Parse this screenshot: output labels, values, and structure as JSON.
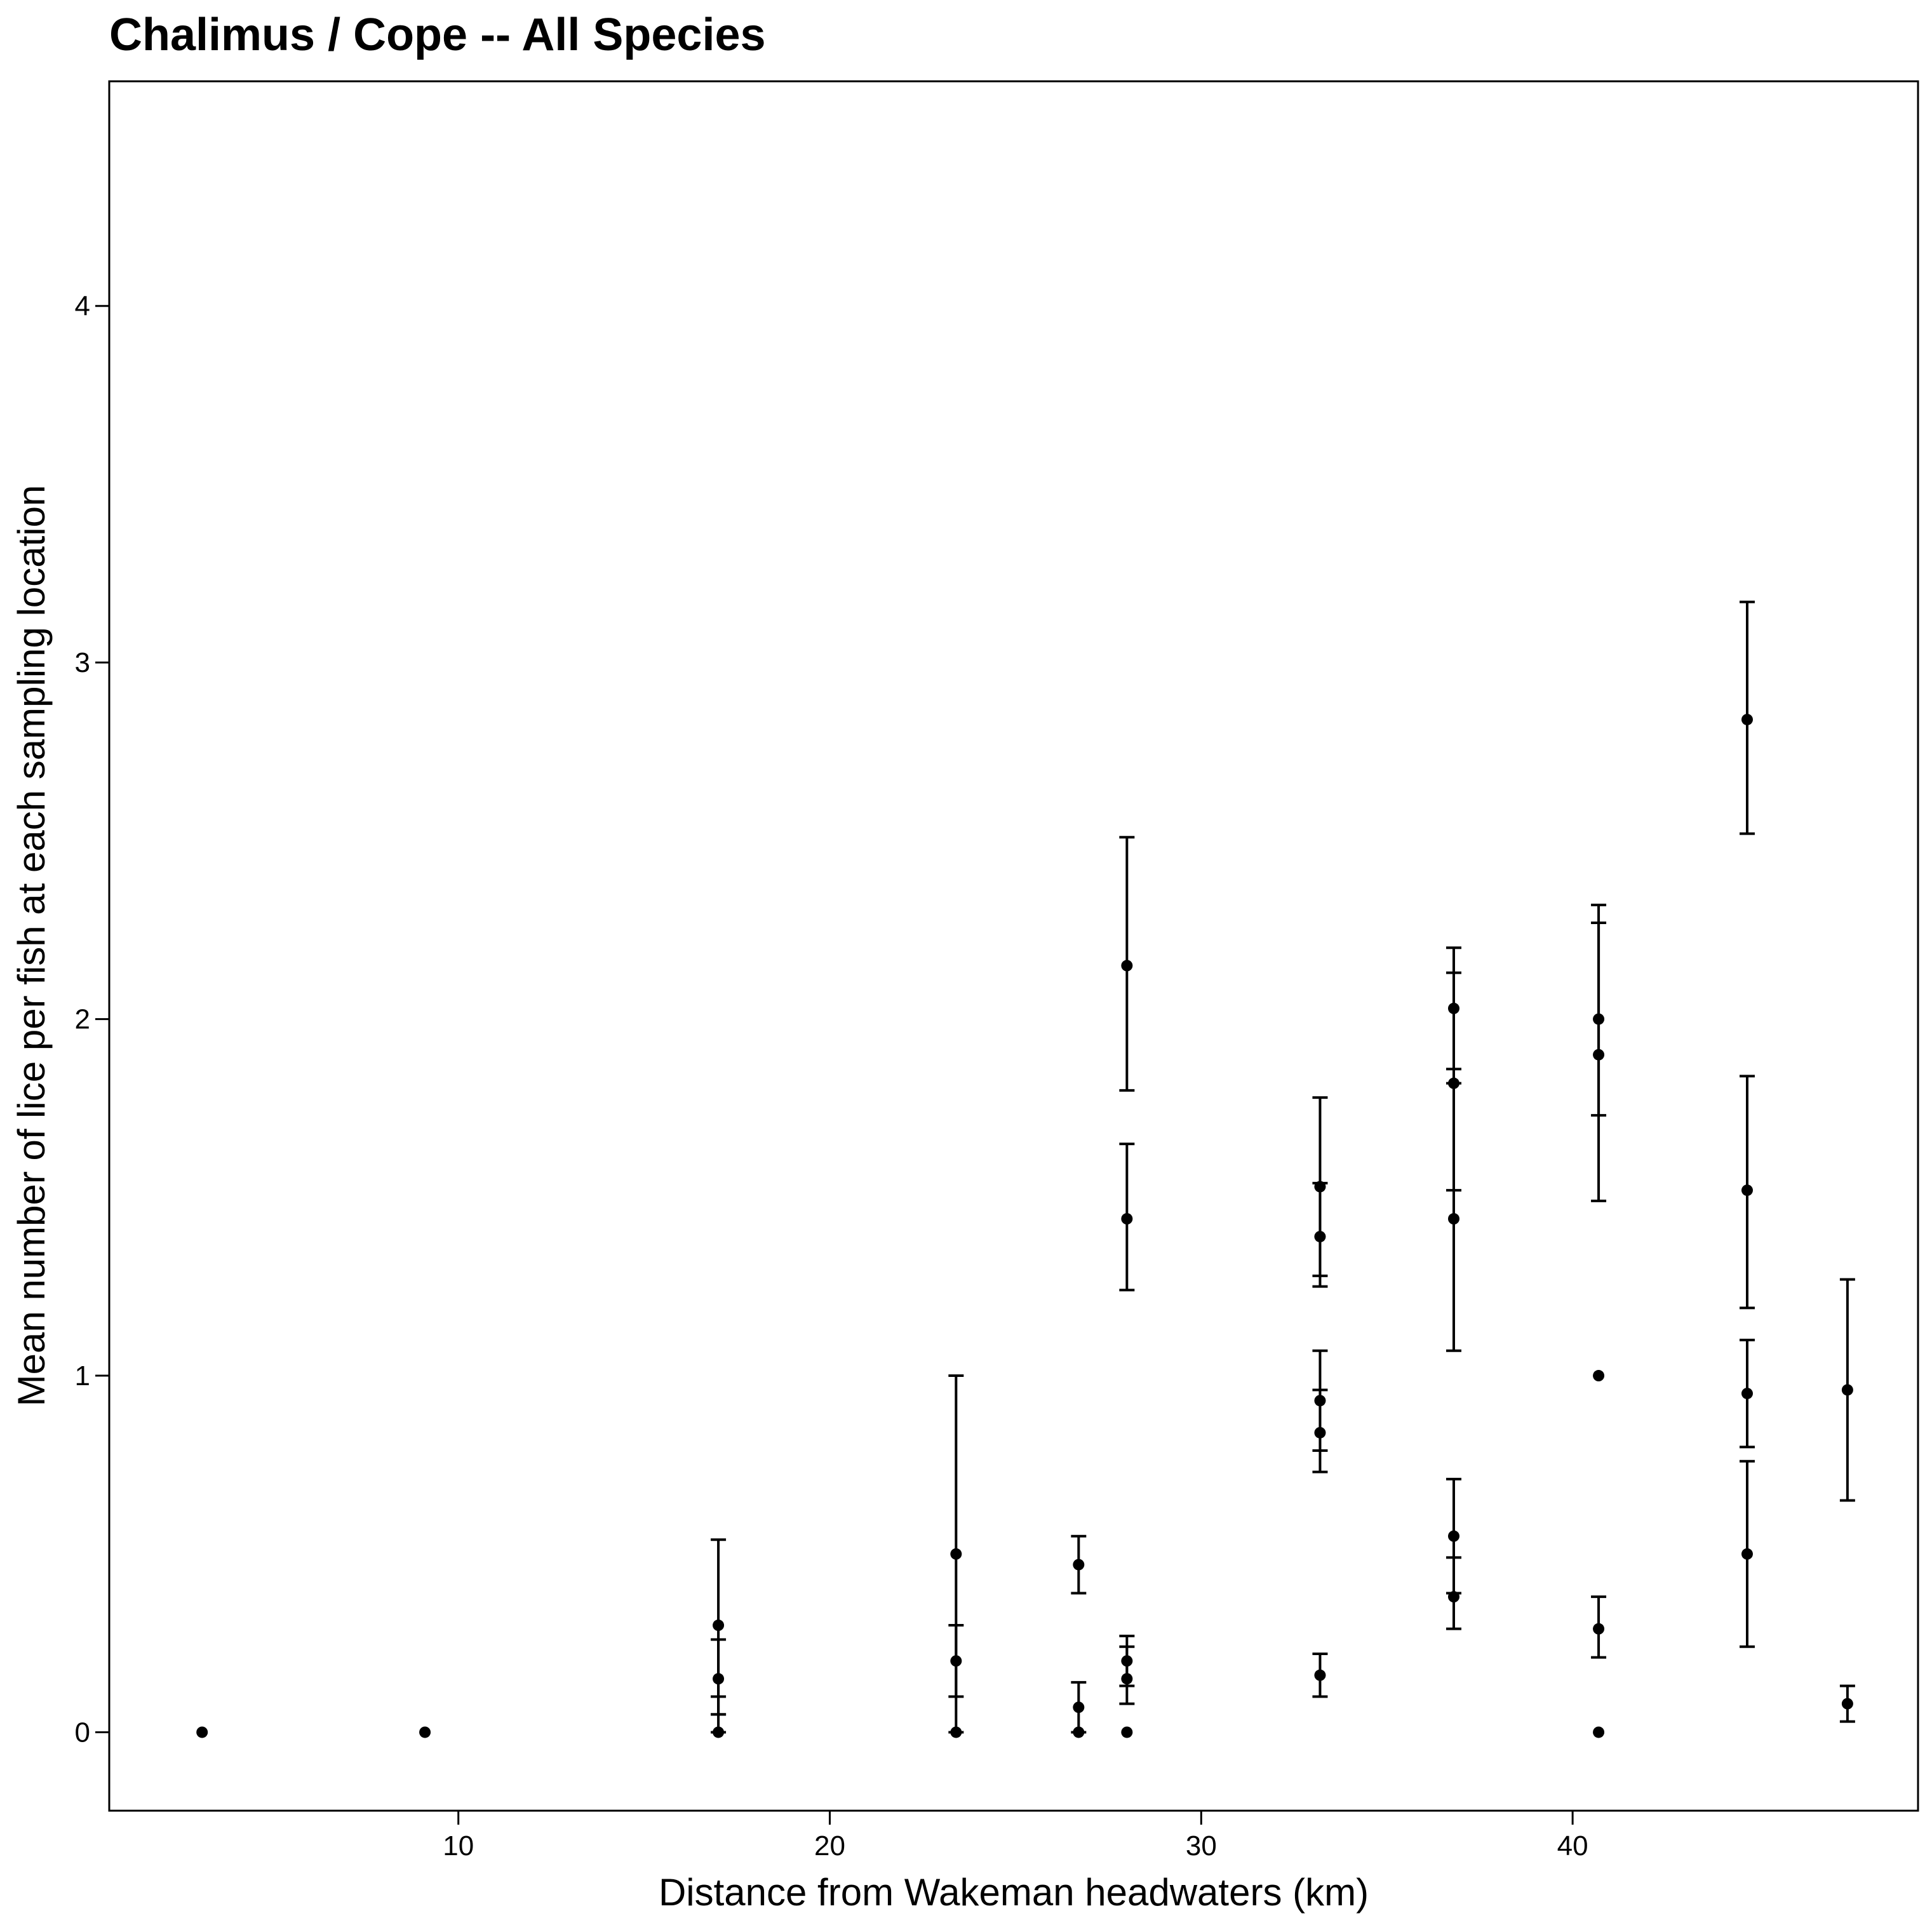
{
  "chart_data": {
    "type": "scatter",
    "title": "Chalimus / Cope -- All Species",
    "xlabel": "Distance from Wakeman headwaters (km)",
    "ylabel": "Mean number of lice per fish at each sampling location",
    "xlim": [
      0.6,
      49.3
    ],
    "ylim": [
      -0.22,
      4.63
    ],
    "x_ticks": [
      10,
      20,
      30,
      40
    ],
    "y_ticks": [
      0,
      1,
      2,
      3,
      4
    ],
    "grid": false,
    "legend": "none",
    "marker_color": "#000000",
    "points": [
      {
        "x": 3.1,
        "y": 0
      },
      {
        "x": 9.1,
        "y": 0
      },
      {
        "x": 17.0,
        "y": 0.3,
        "lo": 0.05,
        "hi": 0.54
      },
      {
        "x": 17.0,
        "y": 0.15,
        "lo": 0.05,
        "hi": 0.26
      },
      {
        "x": 17.0,
        "y": 0,
        "lo": 0,
        "hi": 0.1
      },
      {
        "x": 23.4,
        "y": 0.5,
        "lo": 0,
        "hi": 1.0
      },
      {
        "x": 23.4,
        "y": 0.2,
        "lo": 0.1,
        "hi": 0.3
      },
      {
        "x": 23.4,
        "y": 0
      },
      {
        "x": 26.7,
        "y": 0.47,
        "lo": 0.39,
        "hi": 0.55
      },
      {
        "x": 26.7,
        "y": 0.07,
        "lo": 0,
        "hi": 0.14
      },
      {
        "x": 26.7,
        "y": 0
      },
      {
        "x": 28.0,
        "y": 2.15,
        "lo": 1.8,
        "hi": 2.51
      },
      {
        "x": 28.0,
        "y": 1.44,
        "lo": 1.24,
        "hi": 1.65
      },
      {
        "x": 28.0,
        "y": 0.2,
        "lo": 0.13,
        "hi": 0.27
      },
      {
        "x": 28.0,
        "y": 0.15,
        "lo": 0.08,
        "hi": 0.24
      },
      {
        "x": 28.0,
        "y": 0
      },
      {
        "x": 33.2,
        "y": 1.53,
        "lo": 1.28,
        "hi": 1.78
      },
      {
        "x": 33.2,
        "y": 1.39,
        "lo": 1.25,
        "hi": 1.54
      },
      {
        "x": 33.2,
        "y": 0.93,
        "lo": 0.79,
        "hi": 1.07
      },
      {
        "x": 33.2,
        "y": 0.84,
        "lo": 0.73,
        "hi": 0.96
      },
      {
        "x": 33.2,
        "y": 0.16,
        "lo": 0.1,
        "hi": 0.22
      },
      {
        "x": 36.8,
        "y": 2.03,
        "lo": 1.86,
        "hi": 2.2
      },
      {
        "x": 36.8,
        "y": 1.82,
        "lo": 1.52,
        "hi": 2.13
      },
      {
        "x": 36.8,
        "y": 1.44,
        "lo": 1.07,
        "hi": 1.82
      },
      {
        "x": 36.8,
        "y": 0.55,
        "lo": 0.39,
        "hi": 0.71
      },
      {
        "x": 36.8,
        "y": 0.38,
        "lo": 0.29,
        "hi": 0.49
      },
      {
        "x": 40.7,
        "y": 2.0,
        "lo": 1.73,
        "hi": 2.27
      },
      {
        "x": 40.7,
        "y": 1.9,
        "lo": 1.49,
        "hi": 2.32
      },
      {
        "x": 40.7,
        "y": 1.0
      },
      {
        "x": 40.7,
        "y": 0.29,
        "lo": 0.21,
        "hi": 0.38
      },
      {
        "x": 40.7,
        "y": 0
      },
      {
        "x": 44.7,
        "y": 2.84,
        "lo": 2.52,
        "hi": 3.17
      },
      {
        "x": 44.7,
        "y": 1.52,
        "lo": 1.19,
        "hi": 1.84
      },
      {
        "x": 44.7,
        "y": 0.95,
        "lo": 0.8,
        "hi": 1.1
      },
      {
        "x": 44.7,
        "y": 0.5,
        "lo": 0.24,
        "hi": 0.76
      },
      {
        "x": 47.4,
        "y": 0.96,
        "lo": 0.65,
        "hi": 1.27
      },
      {
        "x": 47.4,
        "y": 0.08,
        "lo": 0.03,
        "hi": 0.13
      }
    ]
  }
}
